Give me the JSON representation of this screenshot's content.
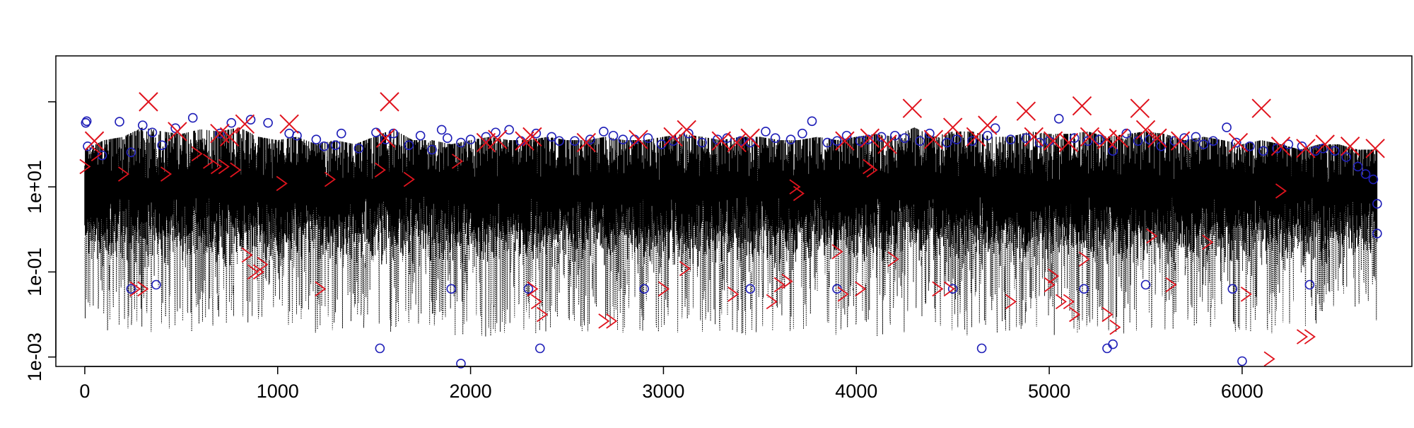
{
  "chart_data": {
    "type": "scatter",
    "title": "",
    "xlabel": "",
    "ylabel": "",
    "y_scale": "log10",
    "xlim": [
      -150,
      6880
    ],
    "ylim": [
      0.0006,
      12000
    ],
    "x_ticks": [
      {
        "value": 0,
        "label": "0"
      },
      {
        "value": 1000,
        "label": "1000"
      },
      {
        "value": 2000,
        "label": "2000"
      },
      {
        "value": 3000,
        "label": "3000"
      },
      {
        "value": 4000,
        "label": "4000"
      },
      {
        "value": 5000,
        "label": "5000"
      },
      {
        "value": 6000,
        "label": "6000"
      }
    ],
    "y_ticks": [
      {
        "value": 0.001,
        "label": "1e-03"
      },
      {
        "value": 0.1,
        "label": "1e-01"
      },
      {
        "value": 10,
        "label": "1e+01"
      },
      {
        "value": 1000,
        "label": ""
      }
    ],
    "grid": false,
    "legend": "none",
    "colors": {
      "line": "#000000",
      "circle": "#1f1fb8",
      "cross": "#e0141e",
      "axis": "#000000"
    },
    "n_points": 6700,
    "series": [
      {
        "role": "dotted-line",
        "marker": "none",
        "x": [
          0,
          100,
          200,
          300,
          400,
          500,
          600,
          700,
          800,
          900,
          1000,
          1100,
          1200,
          1300,
          1400,
          1500,
          1600,
          1700,
          1800,
          1900,
          2000,
          2100,
          2200,
          2300,
          2400,
          2500,
          2600,
          2700,
          2800,
          2900,
          3000,
          3100,
          3200,
          3300,
          3400,
          3500,
          3600,
          3700,
          3800,
          3900,
          4000,
          4100,
          4200,
          4300,
          4400,
          4500,
          4600,
          4700,
          4800,
          4900,
          5000,
          5100,
          5200,
          5300,
          5400,
          5500,
          5600,
          5700,
          5800,
          5900,
          6000,
          6100,
          6200,
          6300,
          6400,
          6500,
          6600,
          6700
        ],
        "upper": [
          150,
          250,
          300,
          500,
          400,
          350,
          450,
          400,
          500,
          300,
          250,
          300,
          200,
          250,
          200,
          300,
          450,
          250,
          250,
          200,
          250,
          300,
          250,
          250,
          300,
          250,
          250,
          300,
          250,
          250,
          300,
          350,
          300,
          250,
          300,
          300,
          250,
          250,
          300,
          250,
          300,
          350,
          300,
          500,
          300,
          400,
          400,
          300,
          300,
          400,
          350,
          350,
          400,
          300,
          350,
          400,
          350,
          250,
          300,
          250,
          200,
          250,
          200,
          150,
          200,
          200,
          150,
          150
        ],
        "lower": [
          0.008,
          0.004,
          0.005,
          0.003,
          0.004,
          0.003,
          0.005,
          0.004,
          0.004,
          0.006,
          0.005,
          0.004,
          0.003,
          0.004,
          0.003,
          0.002,
          0.004,
          0.004,
          0.004,
          0.002,
          0.003,
          0.003,
          0.004,
          0.003,
          0.004,
          0.004,
          0.003,
          0.004,
          0.003,
          0.004,
          0.003,
          0.004,
          0.003,
          0.004,
          0.003,
          0.004,
          0.004,
          0.003,
          0.004,
          0.003,
          0.004,
          0.003,
          0.004,
          0.003,
          0.004,
          0.003,
          0.003,
          0.004,
          0.003,
          0.004,
          0.003,
          0.004,
          0.003,
          0.004,
          0.003,
          0.004,
          0.004,
          0.005,
          0.005,
          0.004,
          0.003,
          0.003,
          0.004,
          0.005,
          0.005,
          0.006,
          0.006,
          0.006
        ]
      },
      {
        "role": "circles",
        "marker": "circle",
        "x": [
          5,
          10,
          15,
          90,
          180,
          240,
          300,
          350,
          400,
          470,
          560,
          700,
          760,
          860,
          950,
          1060,
          1100,
          1200,
          1240,
          1300,
          1330,
          1420,
          1510,
          1560,
          1600,
          1680,
          1740,
          1800,
          1850,
          1880,
          1950,
          2000,
          2080,
          2130,
          2200,
          2260,
          2340,
          2420,
          2460,
          2540,
          2620,
          2690,
          2740,
          2790,
          2850,
          2920,
          2990,
          3050,
          3130,
          3200,
          3280,
          3330,
          3400,
          3450,
          3530,
          3580,
          3660,
          3720,
          3770,
          3850,
          3900,
          3950,
          4020,
          4060,
          4130,
          4200,
          4250,
          4330,
          4380,
          4470,
          4520,
          4600,
          4680,
          4720,
          4800,
          4880,
          4950,
          5000,
          5050,
          5130,
          5200,
          5260,
          5330,
          5400,
          5460,
          5520,
          5580,
          5650,
          5700,
          5760,
          5800,
          5850,
          5920,
          5970,
          6040,
          6110,
          6180,
          6240,
          6310,
          6380,
          6420,
          6480,
          6540,
          6600,
          6640,
          6680,
          6700,
          6700,
          240,
          370,
          1900,
          2300,
          2900,
          3450,
          3900,
          4500,
          5180,
          5500,
          5950,
          6350,
          1530,
          2360,
          4650,
          5300,
          5330,
          1950,
          6000
        ],
        "y": [
          320,
          350,
          90,
          55,
          340,
          65,
          280,
          190,
          95,
          240,
          420,
          180,
          320,
          380,
          320,
          180,
          160,
          130,
          90,
          95,
          180,
          80,
          190,
          130,
          180,
          95,
          160,
          75,
          220,
          140,
          110,
          130,
          150,
          190,
          220,
          120,
          180,
          150,
          120,
          120,
          130,
          200,
          160,
          130,
          130,
          140,
          100,
          120,
          180,
          110,
          130,
          140,
          120,
          110,
          200,
          140,
          130,
          180,
          350,
          110,
          120,
          160,
          120,
          130,
          150,
          160,
          140,
          120,
          180,
          110,
          130,
          120,
          160,
          240,
          130,
          140,
          110,
          120,
          400,
          140,
          120,
          130,
          70,
          180,
          120,
          130,
          90,
          120,
          140,
          150,
          100,
          120,
          250,
          110,
          90,
          70,
          80,
          100,
          90,
          70,
          80,
          70,
          50,
          30,
          20,
          15,
          4,
          0.8,
          0.04,
          0.05,
          0.04,
          0.04,
          0.04,
          0.04,
          0.04,
          0.04,
          0.04,
          0.05,
          0.04,
          0.05,
          0.0016,
          0.0016,
          0.0016,
          0.0016,
          0.002,
          0.0007,
          0.0008
        ]
      },
      {
        "role": "crosses",
        "marker": "x",
        "x": [
          330,
          1580,
          4290,
          4880,
          5170,
          5470,
          6100,
          50,
          480,
          700,
          750,
          830,
          1060,
          1560,
          2080,
          2140,
          2280,
          2320,
          2600,
          2870,
          3050,
          3120,
          3300,
          3380,
          3450,
          3940,
          4070,
          4160,
          4400,
          4500,
          4620,
          4680,
          4920,
          5020,
          5100,
          5210,
          5300,
          5360,
          5500,
          5560,
          5680,
          5980,
          6200,
          6330,
          6430,
          6560,
          6690
        ],
        "y": [
          1000,
          1000,
          700,
          600,
          800,
          700,
          700,
          120,
          200,
          180,
          150,
          300,
          300,
          140,
          110,
          130,
          120,
          150,
          110,
          130,
          150,
          220,
          120,
          110,
          140,
          120,
          140,
          100,
          130,
          250,
          150,
          280,
          150,
          120,
          110,
          150,
          130,
          140,
          220,
          140,
          120,
          110,
          90,
          80,
          100,
          90,
          80
        ]
      },
      {
        "role": "chevrons",
        "marker": ">",
        "x": [
          0,
          60,
          200,
          260,
          300,
          420,
          580,
          640,
          680,
          720,
          780,
          840,
          870,
          900,
          920,
          1020,
          1220,
          1270,
          1530,
          1680,
          1930,
          2320,
          2340,
          2370,
          2690,
          2730,
          3000,
          3110,
          3360,
          3560,
          3600,
          3640,
          3680,
          3700,
          3900,
          3930,
          4020,
          4060,
          4080,
          4190,
          4420,
          4480,
          4800,
          5000,
          5020,
          5060,
          5100,
          5130,
          5180,
          5300,
          5340,
          5530,
          5630,
          5820,
          6020,
          6200,
          6310,
          6350,
          6140
        ],
        "y": [
          30,
          60,
          20,
          0.04,
          0.04,
          20,
          60,
          40,
          30,
          30,
          25,
          0.25,
          0.1,
          0.1,
          0.15,
          12,
          0.04,
          15,
          25,
          15,
          40,
          0.04,
          0.02,
          0.01,
          0.007,
          0.007,
          0.04,
          0.12,
          0.03,
          0.02,
          0.05,
          0.06,
          10,
          7,
          0.3,
          0.03,
          0.04,
          30,
          25,
          0.2,
          0.04,
          0.04,
          0.02,
          0.05,
          0.08,
          0.02,
          0.02,
          0.01,
          0.2,
          0.01,
          0.005,
          0.7,
          0.05,
          0.5,
          0.03,
          8,
          0.003,
          0.003,
          0.0009
        ]
      }
    ]
  }
}
